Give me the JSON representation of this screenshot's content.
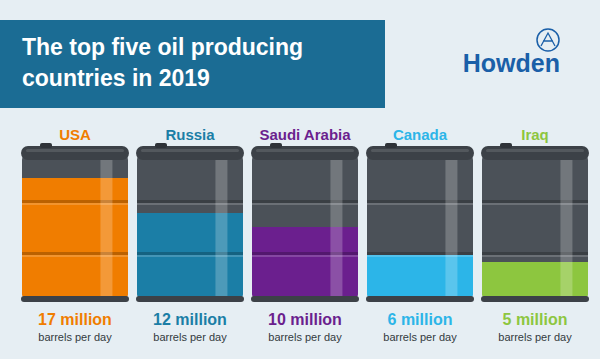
{
  "chart_data": {
    "type": "bar",
    "title": "The top five oil producing countries in 2019",
    "categories": [
      "USA",
      "Russia",
      "Saudi Arabia",
      "Canada",
      "Iraq"
    ],
    "values": [
      17,
      12,
      10,
      6,
      5
    ],
    "value_labels": [
      "17 million",
      "12 million",
      "10 million",
      "6 million",
      "5 million"
    ],
    "ylabel": "barrels per day",
    "colors": [
      "#f07d00",
      "#1b7ea6",
      "#6b1f8e",
      "#2cb5e8",
      "#8dc63f"
    ],
    "ylim": [
      0,
      20
    ],
    "tick_labels": false,
    "data_labels": true,
    "annotations": [
      "Howden"
    ]
  }
}
